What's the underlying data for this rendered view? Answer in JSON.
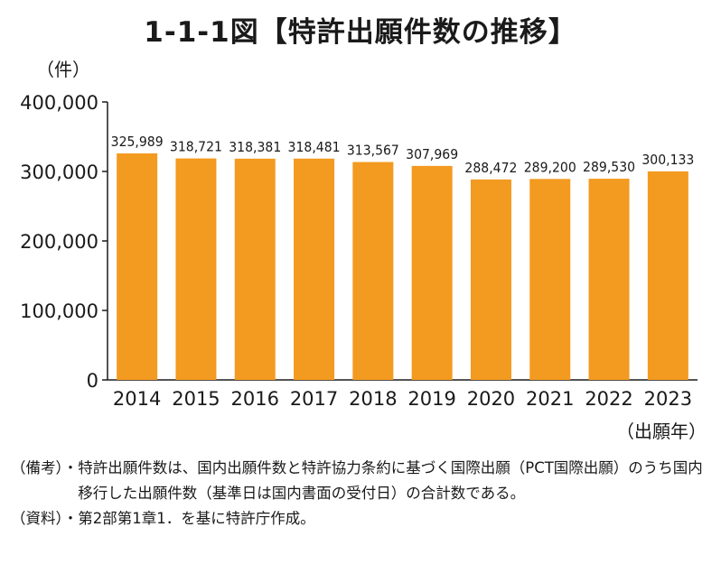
{
  "title": "1-1-1図【特許出願件数の推移】",
  "y_unit_label": "（件）",
  "x_unit_label": "（出願年）",
  "chart_data": {
    "type": "bar",
    "categories": [
      "2014",
      "2015",
      "2016",
      "2017",
      "2018",
      "2019",
      "2020",
      "2021",
      "2022",
      "2023"
    ],
    "values": [
      325989,
      318721,
      318381,
      318481,
      313567,
      307969,
      288472,
      289200,
      289530,
      300133
    ],
    "value_labels": [
      "325,989",
      "318,721",
      "318,381",
      "318,481",
      "313,567",
      "307,969",
      "288,472",
      "289,200",
      "289,530",
      "300,133"
    ],
    "ylim": [
      0,
      400000
    ],
    "yticks": [
      0,
      100000,
      200000,
      300000,
      400000
    ],
    "ytick_labels": [
      "0",
      "100,000",
      "200,000",
      "300,000",
      "400,000"
    ],
    "bar_color": "#F39A20",
    "grid": false
  },
  "notes": [
    {
      "label": "（備考）・",
      "text": "特許出願件数は、国内出願件数と特許協力条約に基づく国際出願（PCT国際出願）のうち国内移行した出願件数（基準日は国内書面の受付日）の合計数である。"
    },
    {
      "label": "（資料）・",
      "text": "第2部第1章1．を基に特許庁作成。"
    }
  ]
}
